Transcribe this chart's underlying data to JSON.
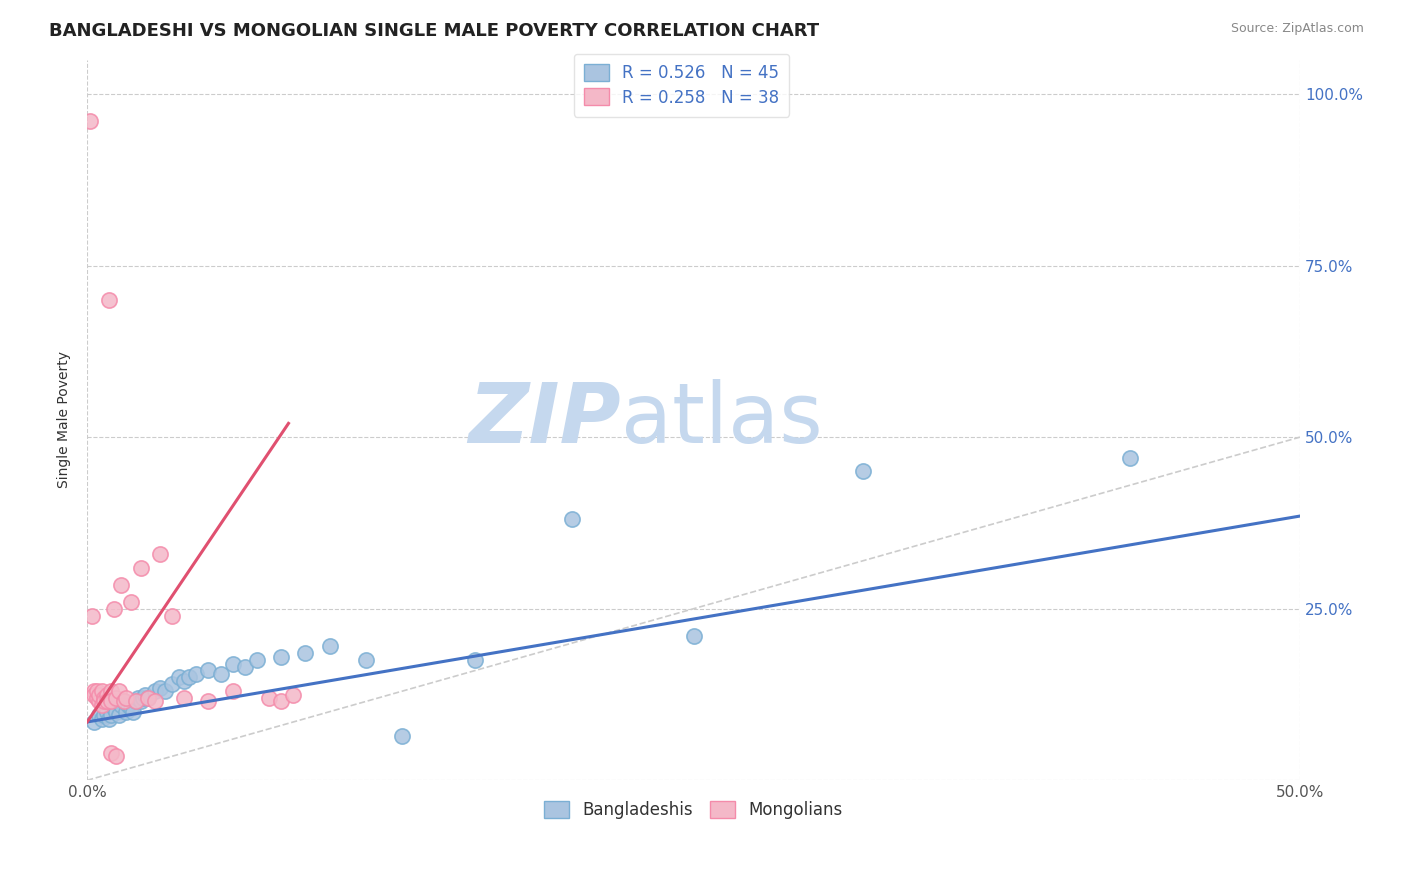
{
  "title": "BANGLADESHI VS MONGOLIAN SINGLE MALE POVERTY CORRELATION CHART",
  "source": "Source: ZipAtlas.com",
  "ylabel": "Single Male Poverty",
  "xlim": [
    0.0,
    0.5
  ],
  "ylim": [
    0.0,
    1.05
  ],
  "ytick_labels": [
    "",
    "25.0%",
    "50.0%",
    "75.0%",
    "100.0%"
  ],
  "ytick_vals": [
    0.0,
    0.25,
    0.5,
    0.75,
    1.0
  ],
  "right_ytick_labels": [
    "",
    "25.0%",
    "50.0%",
    "75.0%",
    "100.0%"
  ],
  "xtick_labels": [
    "0.0%",
    "50.0%"
  ],
  "xtick_vals": [
    0.0,
    0.5
  ],
  "legend_entries": [
    {
      "label": "R = 0.526   N = 45",
      "color": "#aac4e0"
    },
    {
      "label": "R = 0.258   N = 38",
      "color": "#f4b8c8"
    }
  ],
  "legend2_entries": [
    {
      "label": "Bangladeshis",
      "color": "#aac4e0"
    },
    {
      "label": "Mongolians",
      "color": "#f4b8c8"
    }
  ],
  "blue_color": "#7bafd4",
  "pink_color": "#f48baa",
  "blue_scatter_color": "#aac4e0",
  "pink_scatter_color": "#f4b8c8",
  "blue_line_color": "#4472c4",
  "pink_line_color": "#e05070",
  "diag_line_color": "#cccccc",
  "watermark_zip": "ZIP",
  "watermark_atlas": "atlas",
  "watermark_color_zip": "#c5d8ee",
  "watermark_color_atlas": "#c5d8ee",
  "blue_scatter_x": [
    0.003,
    0.005,
    0.006,
    0.007,
    0.008,
    0.009,
    0.01,
    0.011,
    0.012,
    0.013,
    0.014,
    0.015,
    0.016,
    0.017,
    0.018,
    0.019,
    0.02,
    0.021,
    0.022,
    0.023,
    0.024,
    0.025,
    0.028,
    0.03,
    0.032,
    0.035,
    0.038,
    0.04,
    0.042,
    0.045,
    0.05,
    0.055,
    0.06,
    0.065,
    0.07,
    0.08,
    0.09,
    0.1,
    0.115,
    0.13,
    0.16,
    0.2,
    0.25,
    0.32,
    0.43
  ],
  "blue_scatter_y": [
    0.085,
    0.095,
    0.09,
    0.095,
    0.1,
    0.09,
    0.095,
    0.105,
    0.1,
    0.095,
    0.11,
    0.115,
    0.1,
    0.11,
    0.105,
    0.1,
    0.115,
    0.12,
    0.115,
    0.12,
    0.125,
    0.12,
    0.13,
    0.135,
    0.13,
    0.14,
    0.15,
    0.145,
    0.15,
    0.155,
    0.16,
    0.155,
    0.17,
    0.165,
    0.175,
    0.18,
    0.185,
    0.195,
    0.175,
    0.065,
    0.175,
    0.38,
    0.21,
    0.45,
    0.47
  ],
  "pink_scatter_x": [
    0.001,
    0.002,
    0.003,
    0.003,
    0.004,
    0.004,
    0.005,
    0.005,
    0.006,
    0.006,
    0.007,
    0.007,
    0.008,
    0.008,
    0.009,
    0.01,
    0.01,
    0.011,
    0.012,
    0.013,
    0.014,
    0.015,
    0.016,
    0.018,
    0.02,
    0.022,
    0.025,
    0.028,
    0.03,
    0.035,
    0.04,
    0.05,
    0.06,
    0.075,
    0.08,
    0.085,
    0.01,
    0.012
  ],
  "pink_scatter_y": [
    0.96,
    0.24,
    0.13,
    0.125,
    0.12,
    0.13,
    0.115,
    0.125,
    0.11,
    0.13,
    0.12,
    0.115,
    0.125,
    0.115,
    0.7,
    0.13,
    0.115,
    0.25,
    0.12,
    0.13,
    0.285,
    0.115,
    0.12,
    0.26,
    0.115,
    0.31,
    0.12,
    0.115,
    0.33,
    0.24,
    0.12,
    0.115,
    0.13,
    0.12,
    0.115,
    0.125,
    0.04,
    0.035
  ],
  "blue_trend_x": [
    0.0,
    0.5
  ],
  "blue_trend_y": [
    0.085,
    0.385
  ],
  "pink_trend_x": [
    0.0,
    0.083
  ],
  "pink_trend_y": [
    0.085,
    0.52
  ],
  "diag_trend_x": [
    0.0,
    0.5
  ],
  "diag_trend_y": [
    0.0,
    0.5
  ],
  "background_color": "#ffffff",
  "grid_color": "#cccccc",
  "title_fontsize": 13,
  "axis_label_fontsize": 10,
  "tick_fontsize": 11,
  "legend_fontsize": 12
}
